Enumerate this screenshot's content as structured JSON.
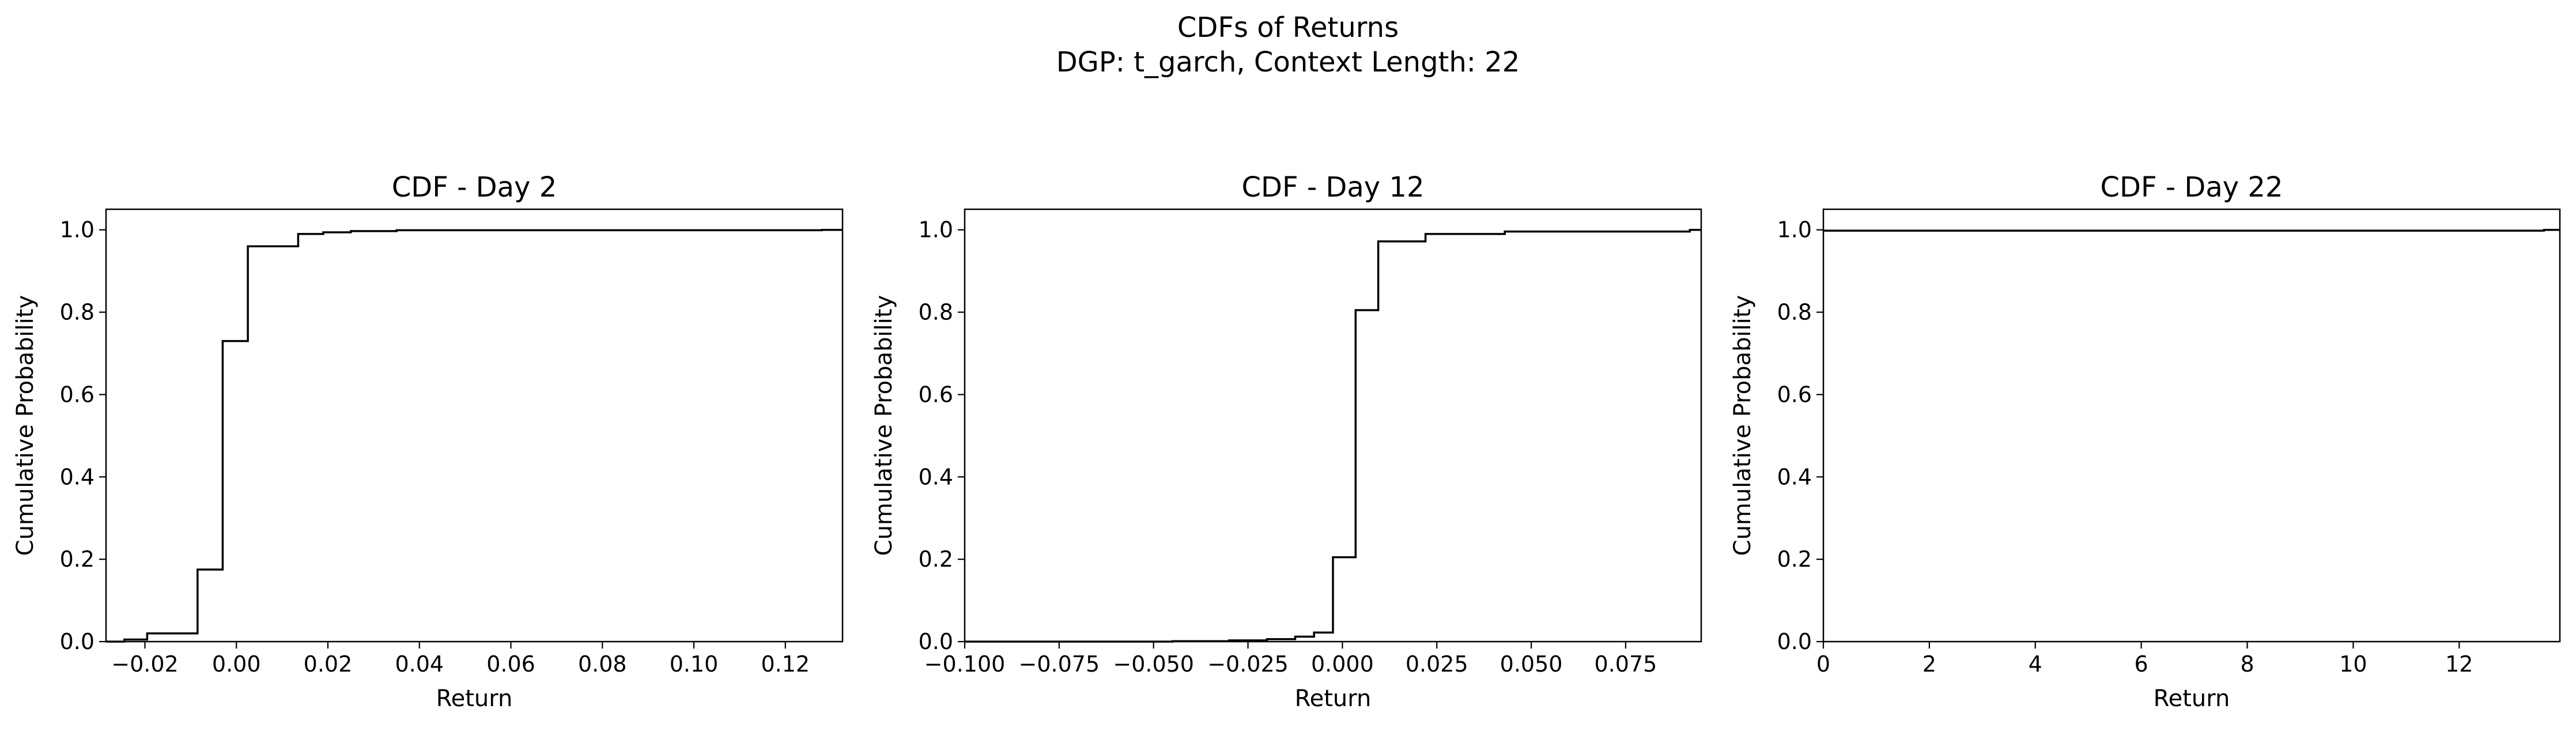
{
  "figure": {
    "title_line1": "CDFs of Returns",
    "title_line2": "DGP: t_garch, Context Length: 22"
  },
  "chart_data": [
    {
      "type": "line",
      "step": true,
      "title": "CDF - Day 2",
      "xlabel": "Return",
      "ylabel": "Cumulative Probability",
      "xlim": [
        -0.0285,
        0.1325
      ],
      "ylim": [
        0.0,
        1.05
      ],
      "xticks": [
        -0.02,
        0.0,
        0.02,
        0.04,
        0.06,
        0.08,
        0.1,
        0.12
      ],
      "xtick_labels": [
        "−0.02",
        "0.00",
        "0.02",
        "0.04",
        "0.06",
        "0.08",
        "0.10",
        "0.12"
      ],
      "yticks": [
        0.0,
        0.2,
        0.4,
        0.6,
        0.8,
        1.0
      ],
      "ytick_labels": [
        "0.0",
        "0.2",
        "0.4",
        "0.6",
        "0.8",
        "1.0"
      ],
      "x": [
        -0.0285,
        -0.0245,
        -0.0195,
        -0.0085,
        -0.003,
        0.0025,
        0.0135,
        0.019,
        0.025,
        0.035,
        0.128,
        0.1325
      ],
      "y": [
        0.0,
        0.005,
        0.02,
        0.175,
        0.73,
        0.96,
        0.99,
        0.994,
        0.997,
        0.999,
        1.0,
        1.0
      ],
      "color": "#000000",
      "grid": false
    },
    {
      "type": "line",
      "step": true,
      "title": "CDF - Day 12",
      "xlabel": "Return",
      "ylabel": "Cumulative Probability",
      "xlim": [
        -0.1,
        0.095
      ],
      "ylim": [
        0.0,
        1.05
      ],
      "xticks": [
        -0.1,
        -0.075,
        -0.05,
        -0.025,
        0.0,
        0.025,
        0.05,
        0.075
      ],
      "xtick_labels": [
        "−0.100",
        "−0.075",
        "−0.050",
        "−0.025",
        "0.000",
        "0.025",
        "0.050",
        "0.075"
      ],
      "yticks": [
        0.0,
        0.2,
        0.4,
        0.6,
        0.8,
        1.0
      ],
      "ytick_labels": [
        "0.0",
        "0.2",
        "0.4",
        "0.6",
        "0.8",
        "1.0"
      ],
      "x": [
        -0.1,
        -0.045,
        -0.03,
        -0.02,
        -0.0125,
        -0.0075,
        -0.0025,
        0.0035,
        0.0095,
        0.022,
        0.043,
        0.092,
        0.095
      ],
      "y": [
        0.0,
        0.001,
        0.003,
        0.006,
        0.012,
        0.022,
        0.205,
        0.805,
        0.972,
        0.99,
        0.996,
        1.0,
        1.0
      ],
      "color": "#000000",
      "grid": false
    },
    {
      "type": "line",
      "step": true,
      "title": "CDF - Day 22",
      "xlabel": "Return",
      "ylabel": "Cumulative Probability",
      "xlim": [
        0,
        13.9
      ],
      "ylim": [
        0.0,
        1.05
      ],
      "xticks": [
        0,
        2,
        4,
        6,
        8,
        10,
        12
      ],
      "xtick_labels": [
        "0",
        "2",
        "4",
        "6",
        "8",
        "10",
        "12"
      ],
      "yticks": [
        0.0,
        0.2,
        0.4,
        0.6,
        0.8,
        1.0
      ],
      "ytick_labels": [
        "0.0",
        "0.2",
        "0.4",
        "0.6",
        "0.8",
        "1.0"
      ],
      "x": [
        0,
        13.6,
        13.9
      ],
      "y": [
        0.998,
        1.0,
        1.0
      ],
      "color": "#000000",
      "grid": false
    }
  ]
}
